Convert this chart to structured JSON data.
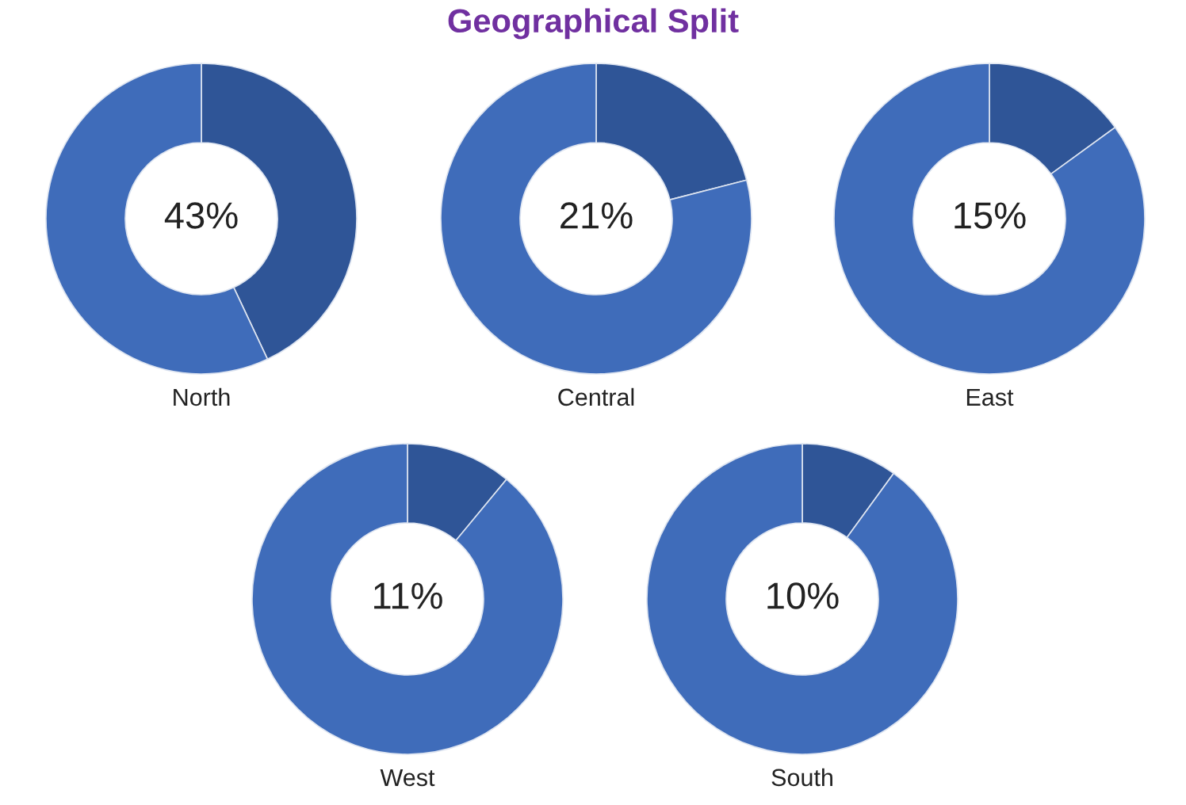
{
  "chart_data": [
    {
      "type": "donut",
      "xlabel": "North",
      "categories": [
        null,
        null
      ],
      "values": [
        43,
        57
      ],
      "colors": [
        "#2f5597",
        "#3f6cba"
      ],
      "value_labels": [
        "43%",
        null
      ]
    },
    {
      "type": "donut",
      "title": "Geographical Split",
      "xlabel": "Central",
      "categories": [
        null,
        null
      ],
      "values": [
        21,
        79
      ],
      "colors": [
        "#2f5597",
        "#3f6cba"
      ],
      "value_labels": [
        "21%",
        null
      ]
    },
    {
      "type": "donut",
      "xlabel": "East",
      "categories": [
        null,
        null
      ],
      "values": [
        15,
        85
      ],
      "colors": [
        "#2f5597",
        "#3f6cba"
      ],
      "value_labels": [
        "15%",
        null
      ]
    },
    {
      "type": "donut",
      "xlabel": "West",
      "categories": [
        null,
        null
      ],
      "values": [
        11,
        89
      ],
      "colors": [
        "#2f5597",
        "#3f6cba"
      ],
      "value_labels": [
        "11%",
        null
      ]
    },
    {
      "type": "donut",
      "xlabel": "South",
      "categories": [
        null,
        null
      ],
      "values": [
        10,
        90
      ],
      "colors": [
        "#2f5597",
        "#3f6cba"
      ],
      "value_labels": [
        "10%",
        null
      ]
    }
  ]
}
